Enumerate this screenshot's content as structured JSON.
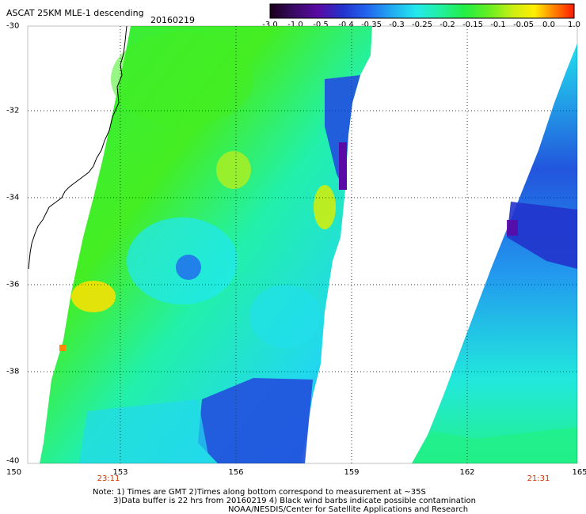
{
  "header": {
    "title": "ASCAT 25KM MLE-1 descending",
    "date": "20160219"
  },
  "colorbar": {
    "ticks": [
      "-3.0",
      "-1.0",
      "-0.5",
      "-0.4",
      "-0.35",
      "-0.3",
      "-0.25",
      "-0.2",
      "-0.15",
      "-0.1",
      "-0.05",
      "0.0",
      "1.0"
    ],
    "colors": [
      "#300030",
      "#3a0a66",
      "#5a0aa5",
      "#2233cc",
      "#2266ee",
      "#22aaf0",
      "#22e0ee",
      "#22f0b0",
      "#22ee66",
      "#55ee22",
      "#aaee22",
      "#ffee00",
      "#ff8800",
      "#ff2200"
    ]
  },
  "map": {
    "lat_labels": [
      "-30",
      "-32",
      "-34",
      "-36",
      "-38",
      "-40"
    ],
    "lon_labels": [
      "150",
      "153",
      "156",
      "159",
      "162",
      "165"
    ],
    "pass_times": [
      {
        "label": "23:11",
        "lon": 153
      },
      {
        "label": "21:31",
        "lon": 164.3
      }
    ],
    "extent": {
      "lon": [
        150,
        165
      ],
      "lat": [
        -40,
        -30
      ]
    },
    "color_scale": "values -3.0 to 1.0 (MLE)"
  },
  "notes": {
    "line1": "Note: 1) Times are GMT 2)Times along bottom correspond to measurement at ~35S",
    "line2": "3)Data buffer is 22 hrs from 20160219 4) Black wind barbs indicate possible contamination",
    "line3": "NOAA/NESDIS/Center for Satellite Applications and Research"
  }
}
